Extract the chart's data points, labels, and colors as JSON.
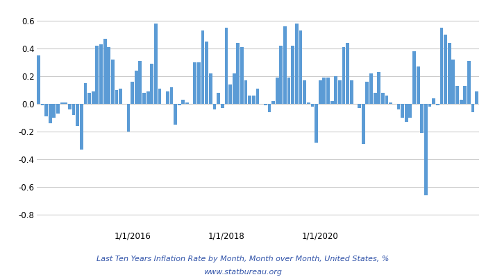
{
  "title": "Last Ten Years Inflation Rate by Month, Month over Month, United States, %",
  "subtitle": "www.statbureau.org",
  "bar_color": "#5b9bd5",
  "bg_color": "#ffffff",
  "grid_color": "#cccccc",
  "ylim": [
    -0.9,
    0.7
  ],
  "yticks": [
    -0.8,
    -0.6,
    -0.4,
    -0.2,
    0.0,
    0.2,
    0.4,
    0.6
  ],
  "values": [
    0.35,
    -0.01,
    -0.09,
    -0.14,
    -0.1,
    -0.07,
    0.01,
    0.01,
    -0.04,
    -0.08,
    -0.16,
    -0.33,
    0.15,
    0.08,
    0.09,
    0.42,
    0.43,
    0.47,
    0.41,
    0.32,
    0.1,
    0.11,
    0.0,
    -0.2,
    0.16,
    0.24,
    0.31,
    0.08,
    0.09,
    0.29,
    0.58,
    0.11,
    0.0,
    0.09,
    0.12,
    -0.15,
    -0.01,
    0.03,
    0.01,
    0.0,
    0.3,
    0.3,
    0.53,
    0.45,
    0.22,
    -0.04,
    0.08,
    -0.03,
    0.55,
    0.14,
    0.22,
    0.44,
    0.41,
    0.17,
    0.06,
    0.06,
    0.11,
    0.0,
    -0.01,
    -0.06,
    0.02,
    0.19,
    0.42,
    0.56,
    0.19,
    0.42,
    0.58,
    0.53,
    0.17,
    0.01,
    -0.02,
    -0.28,
    0.17,
    0.19,
    0.19,
    0.02,
    0.2,
    0.17,
    0.41,
    0.44,
    0.17,
    0.0,
    -0.03,
    -0.29,
    0.16,
    0.22,
    0.08,
    0.23,
    0.08,
    0.06,
    0.01,
    0.0,
    -0.04,
    -0.1,
    -0.13,
    -0.1,
    0.38,
    0.27,
    -0.21,
    -0.66,
    -0.02,
    0.04,
    -0.01,
    0.55,
    0.5,
    0.44,
    0.32,
    0.13,
    0.03,
    0.13,
    0.31,
    -0.06,
    0.09
  ]
}
